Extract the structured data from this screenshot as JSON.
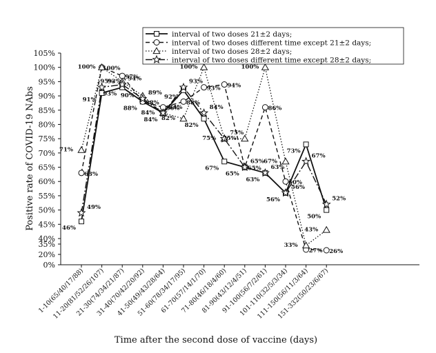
{
  "chart_data": {
    "type": "line",
    "title": "",
    "xlabel": "Time after the second dose of vaccine (days)",
    "ylabel": "Positive rate of COVID-19 NAbs",
    "ylim": [
      0,
      105
    ],
    "y_scale": "broken",
    "yticks": [
      0,
      20,
      35,
      40,
      45,
      50,
      55,
      60,
      65,
      70,
      75,
      80,
      85,
      90,
      95,
      100,
      105
    ],
    "ytick_labels": [
      "0%",
      "20%",
      "35%",
      "40%",
      "45%",
      "50%",
      "55%",
      "60%",
      "65%",
      "70%",
      "75%",
      "80%",
      "85%",
      "90%",
      "95%",
      "100%",
      "105%"
    ],
    "grid": false,
    "legend_position": "top-right",
    "categories": [
      "1-10(65/40/17/88)",
      "11-20(81/52/26/107)",
      "21-30(74/34/21/87)",
      "31-40(70/42/20/92)",
      "41-50(49/43/28/64)",
      "51-60(78/34/17/95)",
      "61-70(57/14/1/70)",
      "71-80(46/18/4/60)",
      "81-90(43/12/4/51)",
      "91-100(56/7/2/61)",
      "101-110(32/5/3/34)",
      "111-150(56/11/3/64)",
      "151-332(50/23/6/67)"
    ],
    "series": [
      {
        "name": "interval of two doses 21±2 days;",
        "marker": "square",
        "line": "solid",
        "values": [
          46,
          91,
          93,
          88,
          84,
          92,
          82,
          67,
          65,
          63,
          56,
          73,
          50
        ]
      },
      {
        "name": "interval of two doses different time except 21±2 days;",
        "marker": "circle",
        "line": "dashed",
        "values": [
          63,
          100,
          97,
          88,
          86,
          88,
          93,
          94,
          65,
          86,
          60,
          27,
          26
        ]
      },
      {
        "name": "interval of two doses 28±2 days;",
        "marker": "triangle",
        "line": "dotted",
        "values": [
          71,
          100,
          95,
          90,
          84,
          82,
          100,
          75,
          75,
          100,
          67,
          33,
          43
        ]
      },
      {
        "name": "interval of two doses different time except 28±2 days;",
        "marker": "star",
        "line": "dashdot",
        "values": [
          49,
          93,
          94,
          89,
          84,
          93,
          84,
          75,
          65,
          63,
          56,
          67,
          52
        ]
      }
    ]
  }
}
